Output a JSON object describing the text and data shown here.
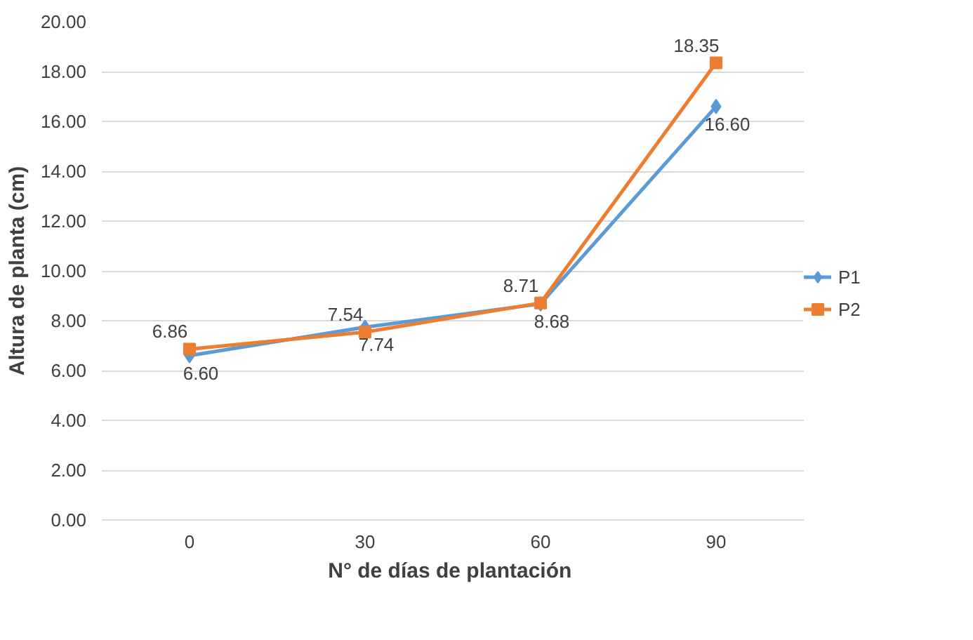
{
  "chart_data": {
    "type": "line",
    "xlabel": "N°  de días de plantación",
    "ylabel": "Altura de planta (cm)",
    "categories": [
      "0",
      "30",
      "60",
      "90"
    ],
    "series": [
      {
        "name": "P1",
        "color": "#5b9bd5",
        "marker": "diamond",
        "values": [
          6.6,
          7.74,
          8.68,
          16.6
        ],
        "value_labels": [
          "6.60",
          "7.74",
          "8.68",
          "16.60"
        ]
      },
      {
        "name": "P2",
        "color": "#ed7d31",
        "marker": "square",
        "values": [
          6.86,
          7.54,
          8.71,
          18.35
        ],
        "value_labels": [
          "6.86",
          "7.54",
          "8.71",
          "18.35"
        ]
      }
    ],
    "ylim": [
      0,
      20
    ],
    "yticks": [
      {
        "value": 0,
        "label": "0.00"
      },
      {
        "value": 2,
        "label": "2.00"
      },
      {
        "value": 4,
        "label": "4.00"
      },
      {
        "value": 6,
        "label": "6.00"
      },
      {
        "value": 8,
        "label": "8.00"
      },
      {
        "value": 10,
        "label": "10.00"
      },
      {
        "value": 12,
        "label": "12.00"
      },
      {
        "value": 14,
        "label": "14.00"
      },
      {
        "value": 16,
        "label": "16.00"
      },
      {
        "value": 18,
        "label": "18.00"
      },
      {
        "value": 20,
        "label": "20.00"
      }
    ],
    "grid": "y",
    "legend": "right"
  }
}
